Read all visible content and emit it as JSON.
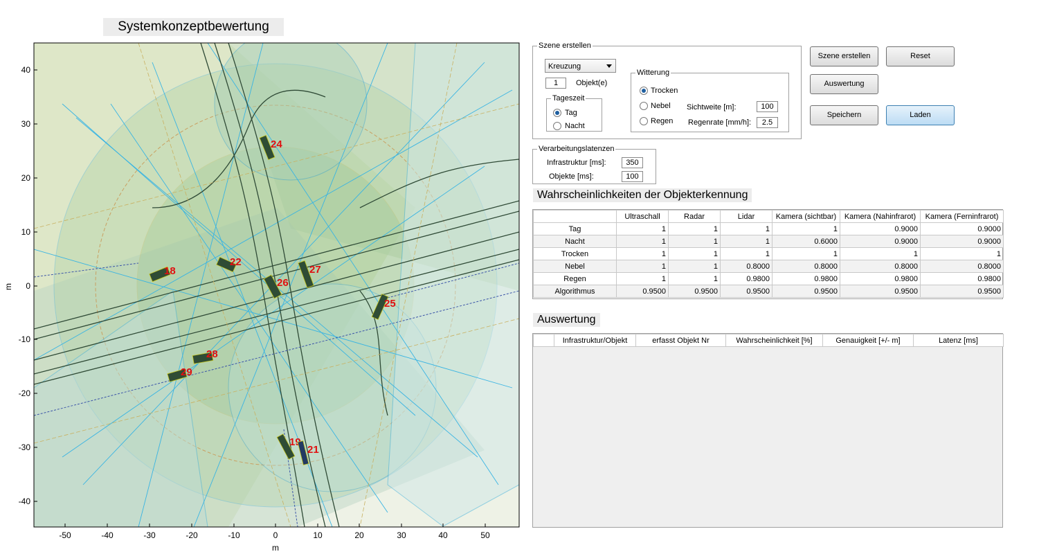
{
  "plot": {
    "title": "Systemkonzeptbewertung",
    "xlabel": "m",
    "ylabel": "m",
    "x_ticks": [
      "-50",
      "-40",
      "-30",
      "-20",
      "-10",
      "0",
      "10",
      "20",
      "30",
      "40",
      "50"
    ],
    "y_ticks": [
      "40",
      "30",
      "20",
      "10",
      "0",
      "-10",
      "-20",
      "-30",
      "-40"
    ],
    "objects": [
      {
        "id": "24"
      },
      {
        "id": "22"
      },
      {
        "id": "18"
      },
      {
        "id": "27"
      },
      {
        "id": "26"
      },
      {
        "id": "25"
      },
      {
        "id": "28"
      },
      {
        "id": "29"
      },
      {
        "id": "19"
      },
      {
        "id": "21"
      }
    ]
  },
  "szene": {
    "title": "Szene erstellen",
    "scene_type": "Kreuzung",
    "objekt_count": "1",
    "objekt_label": "Objekt(e)",
    "tageszeit": {
      "title": "Tageszeit",
      "options": [
        "Tag",
        "Nacht"
      ],
      "selected": "Tag"
    },
    "witterung": {
      "title": "Witterung",
      "options": [
        "Trocken",
        "Nebel",
        "Regen"
      ],
      "selected": "Trocken",
      "sichtweite_label": "Sichtweite [m]:",
      "sichtweite_value": "100",
      "regenrate_label": "Regenrate [mm/h]:",
      "regenrate_value": "2.5"
    }
  },
  "buttons": {
    "szene_erstellen": "Szene erstellen",
    "reset": "Reset",
    "auswertung": "Auswertung",
    "speichern": "Speichern",
    "laden": "Laden"
  },
  "latenzen": {
    "title": "Verarbeitungslatenzen",
    "infrastruktur_label": "Infrastruktur [ms]:",
    "infrastruktur_value": "350",
    "objekte_label": "Objekte [ms]:",
    "objekte_value": "100"
  },
  "wahrscheinlichkeiten": {
    "heading": "Wahrscheinlichkeiten der Objekterkennung",
    "columns": [
      "Ultraschall",
      "Radar",
      "Lidar",
      "Kamera (sichtbar)",
      "Kamera (Nahinfrarot)",
      "Kamera (Ferninfrarot)"
    ],
    "rows": [
      {
        "label": "Tag",
        "values": [
          "1",
          "1",
          "1",
          "1",
          "0.9000",
          "0.9000"
        ]
      },
      {
        "label": "Nacht",
        "values": [
          "1",
          "1",
          "1",
          "0.6000",
          "0.9000",
          "0.9000"
        ]
      },
      {
        "label": "Trocken",
        "values": [
          "1",
          "1",
          "1",
          "1",
          "1",
          "1"
        ]
      },
      {
        "label": "Nebel",
        "values": [
          "1",
          "1",
          "0.8000",
          "0.8000",
          "0.8000",
          "0.8000"
        ]
      },
      {
        "label": "Regen",
        "values": [
          "1",
          "1",
          "0.9800",
          "0.9800",
          "0.9800",
          "0.9800"
        ]
      },
      {
        "label": "Algorithmus",
        "values": [
          "0.9500",
          "0.9500",
          "0.9500",
          "0.9500",
          "0.9500",
          "0.9500"
        ]
      }
    ]
  },
  "auswertung": {
    "heading": "Auswertung",
    "columns": [
      "Infrastruktur/Objekt",
      "erfasst Objekt Nr",
      "Wahrscheinlichkeit [%]",
      "Genauigkeit [+/- m]",
      "Latenz [ms]"
    ]
  }
}
